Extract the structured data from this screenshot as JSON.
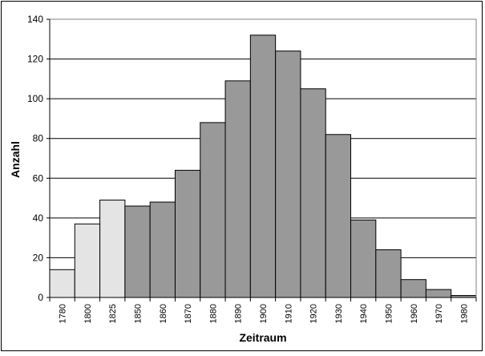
{
  "chart_data": {
    "type": "bar",
    "title": "",
    "xlabel": "Zeitraum",
    "ylabel": "Anzahl",
    "ylim": [
      0,
      140
    ],
    "yticks": [
      0,
      20,
      40,
      60,
      80,
      100,
      120,
      140
    ],
    "grid": true,
    "categories": [
      "1780",
      "1800",
      "1825",
      "1850",
      "1860",
      "1870",
      "1880",
      "1890",
      "1900",
      "1910",
      "1920",
      "1930",
      "1940",
      "1950",
      "1960",
      "1970",
      "1980"
    ],
    "values": [
      14,
      37,
      49,
      46,
      48,
      64,
      88,
      109,
      132,
      124,
      105,
      82,
      39,
      24,
      9,
      4,
      1
    ],
    "colors": [
      "#e4e4e4",
      "#e4e4e4",
      "#e4e4e4",
      "#999999",
      "#999999",
      "#999999",
      "#999999",
      "#999999",
      "#999999",
      "#999999",
      "#999999",
      "#999999",
      "#999999",
      "#999999",
      "#999999",
      "#999999",
      "#999999"
    ],
    "gridline_color": "#000000",
    "bar_stroke": "#000000"
  }
}
